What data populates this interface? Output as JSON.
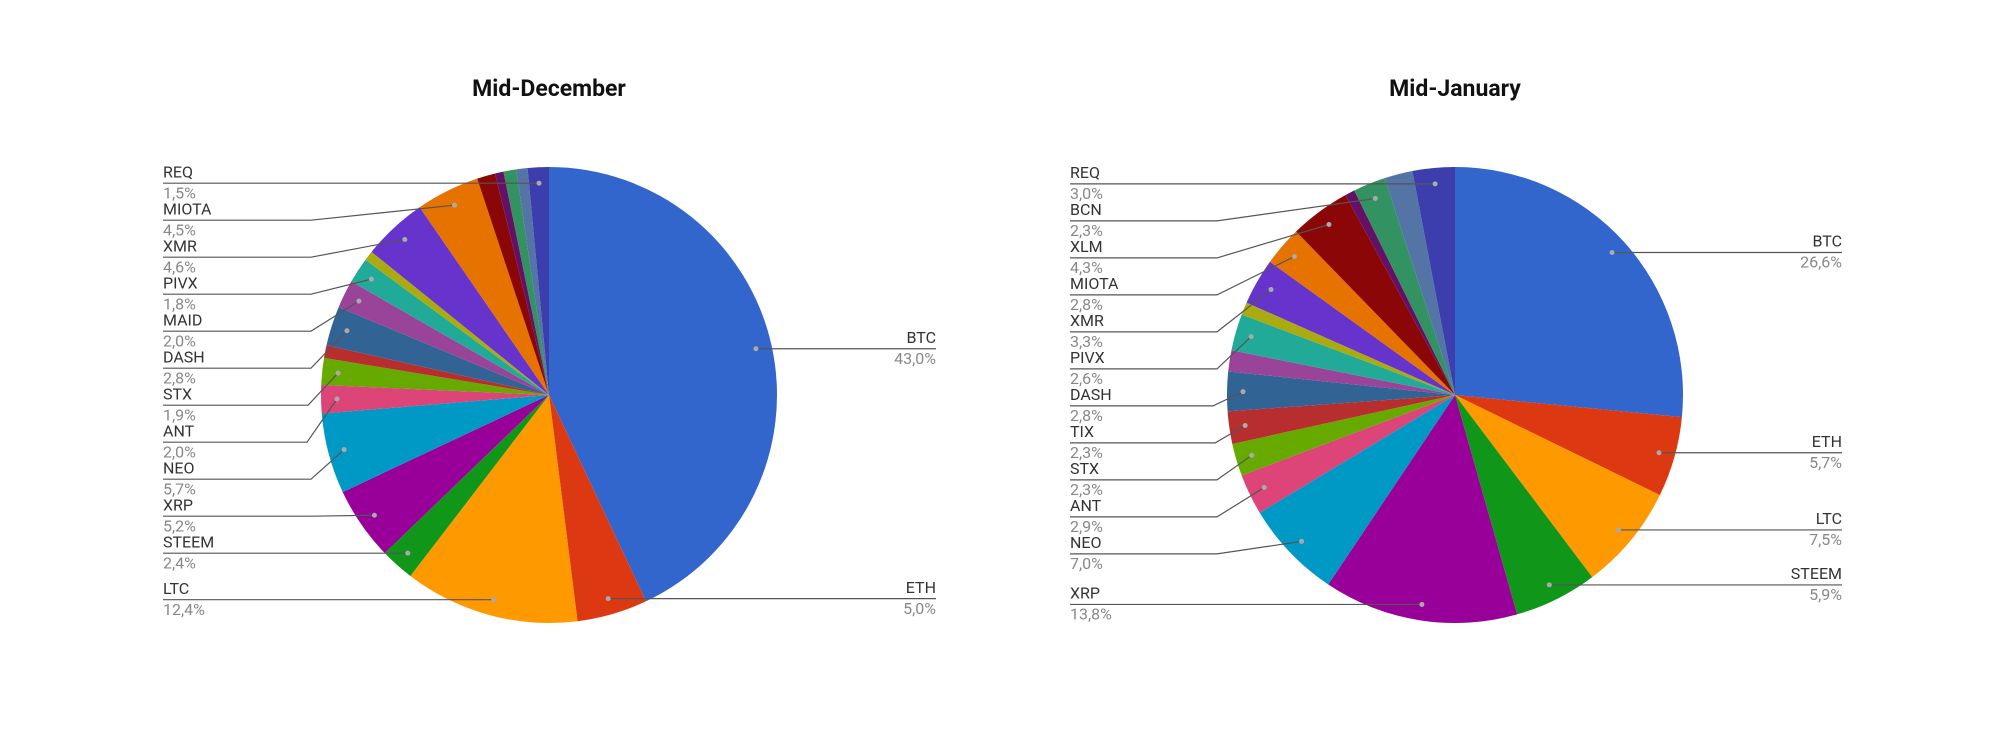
{
  "chart_data": [
    {
      "type": "pie",
      "title": "Mid-December",
      "categories": [
        "BTC",
        "ETH",
        "LTC",
        "STEEM",
        "XRP",
        "NEO",
        "ANT",
        "STX",
        null,
        "DASH",
        "MAID",
        "PIVX",
        null,
        "XMR",
        "MIOTA",
        null,
        null,
        null,
        null,
        "REQ"
      ],
      "values": [
        43.0,
        5.0,
        12.4,
        2.4,
        5.2,
        5.7,
        2.0,
        1.9,
        0.9,
        2.8,
        2.0,
        1.8,
        0.7,
        4.6,
        4.5,
        1.3,
        0.6,
        0.9,
        0.8,
        1.5
      ],
      "value_labels": [
        "43,0%",
        "5,0%",
        "12,4%",
        "2,4%",
        "5,2%",
        "5,7%",
        "2,0%",
        "1,9%",
        null,
        "2,8%",
        "2,0%",
        "1,8%",
        null,
        "4,6%",
        "4,5%",
        null,
        null,
        null,
        null,
        "1,5%"
      ],
      "colors": [
        "#3366cc",
        "#dc3912",
        "#ff9900",
        "#109618",
        "#990099",
        "#0099c6",
        "#dd4477",
        "#66aa00",
        "#b82e2e",
        "#316395",
        "#994499",
        "#22aa99",
        "#aaaa11",
        "#6633cc",
        "#e67300",
        "#8b0707",
        "#651067",
        "#329262",
        "#5574a6",
        "#3b3eac"
      ]
    },
    {
      "type": "pie",
      "title": "Mid-January",
      "categories": [
        "BTC",
        "ETH",
        "LTC",
        "STEEM",
        "XRP",
        "NEO",
        "ANT",
        "STX",
        "TIX",
        "DASH",
        null,
        "PIVX",
        null,
        "XMR",
        "MIOTA",
        "XLM",
        null,
        "BCN",
        null,
        "REQ"
      ],
      "values": [
        26.6,
        5.7,
        7.5,
        5.9,
        13.8,
        7.0,
        2.9,
        2.3,
        2.3,
        2.8,
        1.5,
        2.6,
        0.9,
        3.3,
        2.8,
        4.3,
        0.7,
        2.3,
        2.0,
        3.0
      ],
      "value_labels": [
        "26,6%",
        "5,7%",
        "7,5%",
        "5,9%",
        "13,8%",
        "7,0%",
        "2,9%",
        "2,3%",
        "2,3%",
        "2,8%",
        null,
        "2,6%",
        null,
        "3,3%",
        "2,8%",
        "4,3%",
        null,
        "2,3%",
        null,
        "3,0%"
      ],
      "colors": [
        "#3366cc",
        "#dc3912",
        "#ff9900",
        "#109618",
        "#990099",
        "#0099c6",
        "#dd4477",
        "#66aa00",
        "#b82e2e",
        "#316395",
        "#994499",
        "#22aa99",
        "#aaaa11",
        "#6633cc",
        "#e67300",
        "#8b0707",
        "#651067",
        "#329262",
        "#5574a6",
        "#3b3eac"
      ]
    }
  ]
}
